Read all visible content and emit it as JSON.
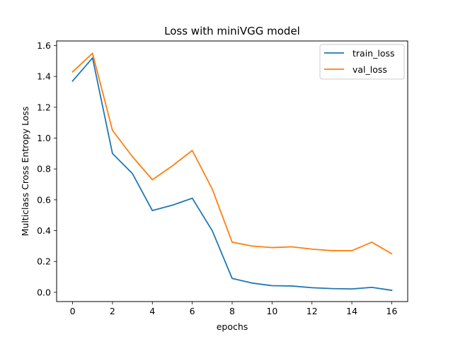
{
  "chart_data": {
    "type": "line",
    "title": "Loss with miniVGG model",
    "xlabel": "epochs",
    "ylabel": "Multiclass Cross Entropy Loss",
    "x": [
      0,
      1,
      2,
      3,
      4,
      5,
      6,
      7,
      8,
      9,
      10,
      11,
      12,
      13,
      14,
      15,
      16
    ],
    "xlim": [
      -0.8,
      16.8
    ],
    "ylim": [
      -0.06,
      1.63
    ],
    "xticks": [
      0,
      2,
      4,
      6,
      8,
      10,
      12,
      14,
      16
    ],
    "yticks": [
      0.0,
      0.2,
      0.4,
      0.6,
      0.8,
      1.0,
      1.2,
      1.4,
      1.6
    ],
    "ytick_labels": [
      "0.0",
      "0.2",
      "0.4",
      "0.6",
      "0.8",
      "1.0",
      "1.2",
      "1.4",
      "1.6"
    ],
    "grid": false,
    "legend_position": "top-right",
    "series": [
      {
        "name": "train_loss",
        "color": "#1f77b4",
        "values": [
          1.37,
          1.52,
          0.9,
          0.77,
          0.53,
          0.565,
          0.61,
          0.4,
          0.09,
          0.06,
          0.043,
          0.041,
          0.03,
          0.024,
          0.022,
          0.032,
          0.013
        ]
      },
      {
        "name": "val_loss",
        "color": "#ff7f0e",
        "values": [
          1.43,
          1.55,
          1.05,
          0.88,
          0.73,
          0.82,
          0.92,
          0.67,
          0.325,
          0.3,
          0.29,
          0.295,
          0.28,
          0.27,
          0.27,
          0.325,
          0.25
        ]
      }
    ]
  }
}
